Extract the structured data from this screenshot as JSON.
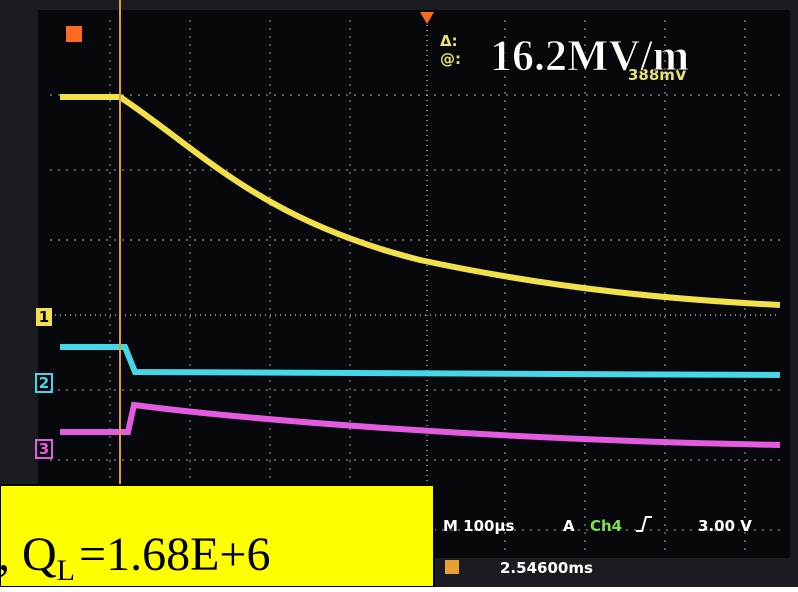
{
  "overlay": {
    "field": "16.2MV/m",
    "quality": {
      "prefix": ",",
      "symbol": "Q",
      "subscript": "L",
      "value": "=1.68E+6"
    }
  },
  "scope": {
    "cursor": {
      "delta": "Δ:",
      "at": "@:",
      "level": "388mV"
    },
    "channels": [
      "1",
      "2",
      "3"
    ],
    "timebase": "M 100µs",
    "trigger_mode": "A",
    "trigger_source": "Ch4",
    "trigger_level": "3.00 V",
    "position": "2.54600ms"
  }
}
